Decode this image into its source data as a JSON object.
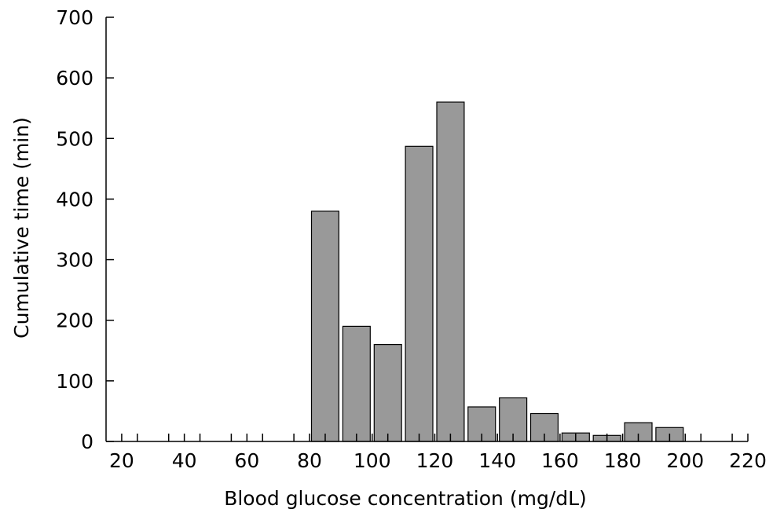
{
  "chart_data": {
    "type": "bar",
    "title": "",
    "xlabel": "Blood glucose concentration (mg/dL)",
    "ylabel": "Cumulative time (min)",
    "xlim": [
      15,
      220
    ],
    "ylim": [
      0,
      700
    ],
    "bin_width": 10,
    "x_ticks": [
      20,
      40,
      60,
      80,
      100,
      120,
      140,
      160,
      180,
      200,
      220
    ],
    "y_ticks": [
      0,
      100,
      200,
      300,
      400,
      500,
      600,
      700
    ],
    "x_minor_ticks": [
      25,
      35,
      45,
      55,
      65,
      75,
      85,
      95,
      105,
      115,
      125,
      135,
      145,
      155,
      165,
      175,
      185,
      195,
      205,
      215
    ],
    "grid": false,
    "legend": "none",
    "bar_color": "#999999",
    "bins": [
      {
        "x": 85,
        "value": 380
      },
      {
        "x": 95,
        "value": 190
      },
      {
        "x": 105,
        "value": 160
      },
      {
        "x": 115,
        "value": 487
      },
      {
        "x": 125,
        "value": 560
      },
      {
        "x": 135,
        "value": 57
      },
      {
        "x": 145,
        "value": 72
      },
      {
        "x": 155,
        "value": 46
      },
      {
        "x": 165,
        "value": 14
      },
      {
        "x": 175,
        "value": 10
      },
      {
        "x": 185,
        "value": 31
      },
      {
        "x": 195,
        "value": 23
      }
    ]
  }
}
